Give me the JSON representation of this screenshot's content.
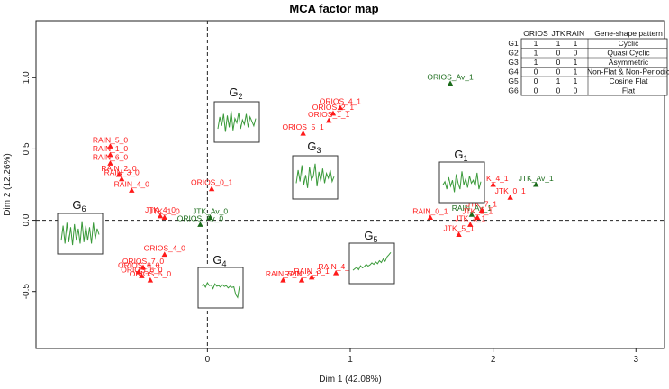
{
  "chart_data": {
    "type": "scatter",
    "title": "MCA factor map",
    "xlabel": "Dim 1 (42.08%)",
    "ylabel": "Dim 2 (12.26%)",
    "xlim": [
      -1.2,
      3.2
    ],
    "ylim": [
      -0.9,
      1.4
    ],
    "xticks": [
      "0",
      "1",
      "2",
      "3"
    ],
    "yticks": [
      "-0.5",
      "0.0",
      "0.5",
      "1.0"
    ],
    "xtick_values": [
      0,
      1,
      2,
      3
    ],
    "ytick_values": [
      -0.5,
      0,
      0.5,
      1.0
    ],
    "colors": {
      "red": "#ff1a1a",
      "green": "#1a6b1a",
      "axis": "#222222",
      "box": "#333333",
      "signal": "#3a9a3a"
    },
    "points": [
      {
        "label": "ORIOS_Av_1",
        "x": 1.7,
        "y": 0.96,
        "color": "green"
      },
      {
        "label": "JTK_Av_1",
        "x": 2.3,
        "y": 0.25,
        "color": "green"
      },
      {
        "label": "RAIN_Av_1",
        "x": 1.85,
        "y": 0.04,
        "color": "green"
      },
      {
        "label": "JTK_Av_0",
        "x": 0.02,
        "y": 0.02,
        "color": "green"
      },
      {
        "label": "ORIOS_Av_0",
        "x": -0.05,
        "y": -0.03,
        "color": "green"
      },
      {
        "label": "JTK_4_1",
        "x": 2.0,
        "y": 0.25,
        "color": "red"
      },
      {
        "label": "JTK_0_1",
        "x": 2.12,
        "y": 0.16,
        "color": "red"
      },
      {
        "label": "JTK_7_1",
        "x": 1.92,
        "y": 0.07,
        "color": "red"
      },
      {
        "label": "JTK_2_1",
        "x": 1.89,
        "y": 0.02,
        "color": "red"
      },
      {
        "label": "JTK_a_1",
        "x": 1.84,
        "y": -0.03,
        "color": "red"
      },
      {
        "label": "JTK_5_1",
        "x": 1.76,
        "y": -0.1,
        "color": "red"
      },
      {
        "label": "RAIN_0_1",
        "x": 1.56,
        "y": 0.02,
        "color": "red"
      },
      {
        "label": "RAIN_4_1",
        "x": 0.9,
        "y": -0.37,
        "color": "red"
      },
      {
        "label": "RAIN_3_1",
        "x": 0.73,
        "y": -0.4,
        "color": "red"
      },
      {
        "label": "RAIN_5_1",
        "x": 0.53,
        "y": -0.42,
        "color": "red"
      },
      {
        "label": "RAIN_2_1",
        "x": 0.66,
        "y": -0.42,
        "color": "red"
      },
      {
        "label": "ORIOS_4_1",
        "x": 0.93,
        "y": 0.79,
        "color": "red"
      },
      {
        "label": "ORIOS_2_1",
        "x": 0.88,
        "y": 0.75,
        "color": "red"
      },
      {
        "label": "ORIOS_1_1",
        "x": 0.85,
        "y": 0.7,
        "color": "red"
      },
      {
        "label": "ORIOS_5_1",
        "x": 0.67,
        "y": 0.61,
        "color": "red"
      },
      {
        "label": "ORIOS_0_1",
        "x": 0.03,
        "y": 0.22,
        "color": "red"
      },
      {
        "label": "RAIN_5_0",
        "x": -0.68,
        "y": 0.52,
        "color": "red"
      },
      {
        "label": "RAIN_1_0",
        "x": -0.68,
        "y": 0.46,
        "color": "red"
      },
      {
        "label": "RAIN_6_0",
        "x": -0.68,
        "y": 0.4,
        "color": "red"
      },
      {
        "label": "RAIN_2_0",
        "x": -0.62,
        "y": 0.32,
        "color": "red"
      },
      {
        "label": "RAIN_3_0",
        "x": -0.6,
        "y": 0.29,
        "color": "red"
      },
      {
        "label": "RAIN_4_0",
        "x": -0.53,
        "y": 0.21,
        "color": "red"
      },
      {
        "label": "JTK_4_0",
        "x": -0.33,
        "y": 0.03,
        "color": "red"
      },
      {
        "label": "JTK_1_0",
        "x": -0.3,
        "y": 0.02,
        "color": "red"
      },
      {
        "label": "ORIOS_4_0",
        "x": -0.3,
        "y": -0.24,
        "color": "red"
      },
      {
        "label": "ORIOS_7_0",
        "x": -0.45,
        "y": -0.33,
        "color": "red"
      },
      {
        "label": "ORIOS_8_0",
        "x": -0.48,
        "y": -0.36,
        "color": "red"
      },
      {
        "label": "ORIOS_6_0",
        "x": -0.46,
        "y": -0.39,
        "color": "red"
      },
      {
        "label": "ORIOS_5_0",
        "x": -0.4,
        "y": -0.42,
        "color": "red"
      }
    ],
    "groups": [
      {
        "name": "G",
        "sub": "1",
        "series": [
          0.45,
          0.55,
          0.3,
          0.7,
          0.4,
          0.6,
          0.2,
          0.8,
          0.5,
          0.3,
          0.9,
          0.45,
          0.65,
          0.35,
          0.75,
          0.5,
          0.6,
          0.4,
          0.85,
          0.3,
          0.55
        ]
      },
      {
        "name": "G",
        "sub": "2",
        "series": [
          0.3,
          0.7,
          0.4,
          0.8,
          0.2,
          0.75,
          0.35,
          0.9,
          0.25,
          0.65,
          0.5,
          0.85,
          0.3,
          0.6,
          0.45,
          0.8,
          0.35,
          0.7,
          0.55,
          0.4,
          0.65
        ]
      },
      {
        "name": "G",
        "sub": "3",
        "series": [
          0.35,
          0.75,
          0.4,
          0.9,
          0.3,
          0.6,
          0.2,
          0.85,
          0.45,
          0.55,
          0.95,
          0.25,
          0.7,
          0.4,
          0.8,
          0.35,
          0.65,
          0.5,
          0.75,
          0.4,
          0.55
        ]
      },
      {
        "name": "G",
        "sub": "4",
        "series": [
          0.6,
          0.65,
          0.55,
          0.7,
          0.6,
          0.62,
          0.5,
          0.66,
          0.58,
          0.6,
          0.55,
          0.63,
          0.57,
          0.6,
          0.52,
          0.58,
          0.54,
          0.56,
          0.3,
          0.2,
          0.58
        ]
      },
      {
        "name": "G",
        "sub": "5",
        "series": [
          0.3,
          0.35,
          0.4,
          0.32,
          0.45,
          0.38,
          0.42,
          0.5,
          0.44,
          0.48,
          0.55,
          0.5,
          0.58,
          0.52,
          0.62,
          0.56,
          0.68,
          0.6,
          0.75,
          0.82,
          0.9
        ]
      },
      {
        "name": "G",
        "sub": "6",
        "series": [
          0.3,
          0.8,
          0.2,
          0.9,
          0.25,
          0.75,
          0.15,
          0.85,
          0.3,
          0.7,
          0.2,
          0.95,
          0.25,
          0.8,
          0.3,
          0.75,
          0.2,
          0.9,
          0.35,
          0.7,
          0.5
        ]
      }
    ],
    "legend": {
      "headers": [
        "ORIOS",
        "JTK",
        "RAIN",
        "Gene-shape pattern"
      ],
      "rows": [
        {
          "g": "G1",
          "orios": "1",
          "jtk": "1",
          "rain": "1",
          "pattern": "Cyclic"
        },
        {
          "g": "G2",
          "orios": "1",
          "jtk": "0",
          "rain": "0",
          "pattern": "Quasi Cyclic"
        },
        {
          "g": "G3",
          "orios": "1",
          "jtk": "0",
          "rain": "1",
          "pattern": "Asymmetric"
        },
        {
          "g": "G4",
          "orios": "0",
          "jtk": "0",
          "rain": "1",
          "pattern": "Non-Flat & Non-Periodic"
        },
        {
          "g": "G5",
          "orios": "0",
          "jtk": "1",
          "rain": "1",
          "pattern": "Cosine Flat"
        },
        {
          "g": "G6",
          "orios": "0",
          "jtk": "0",
          "rain": "0",
          "pattern": "Flat"
        }
      ],
      "position": "top-right"
    }
  }
}
